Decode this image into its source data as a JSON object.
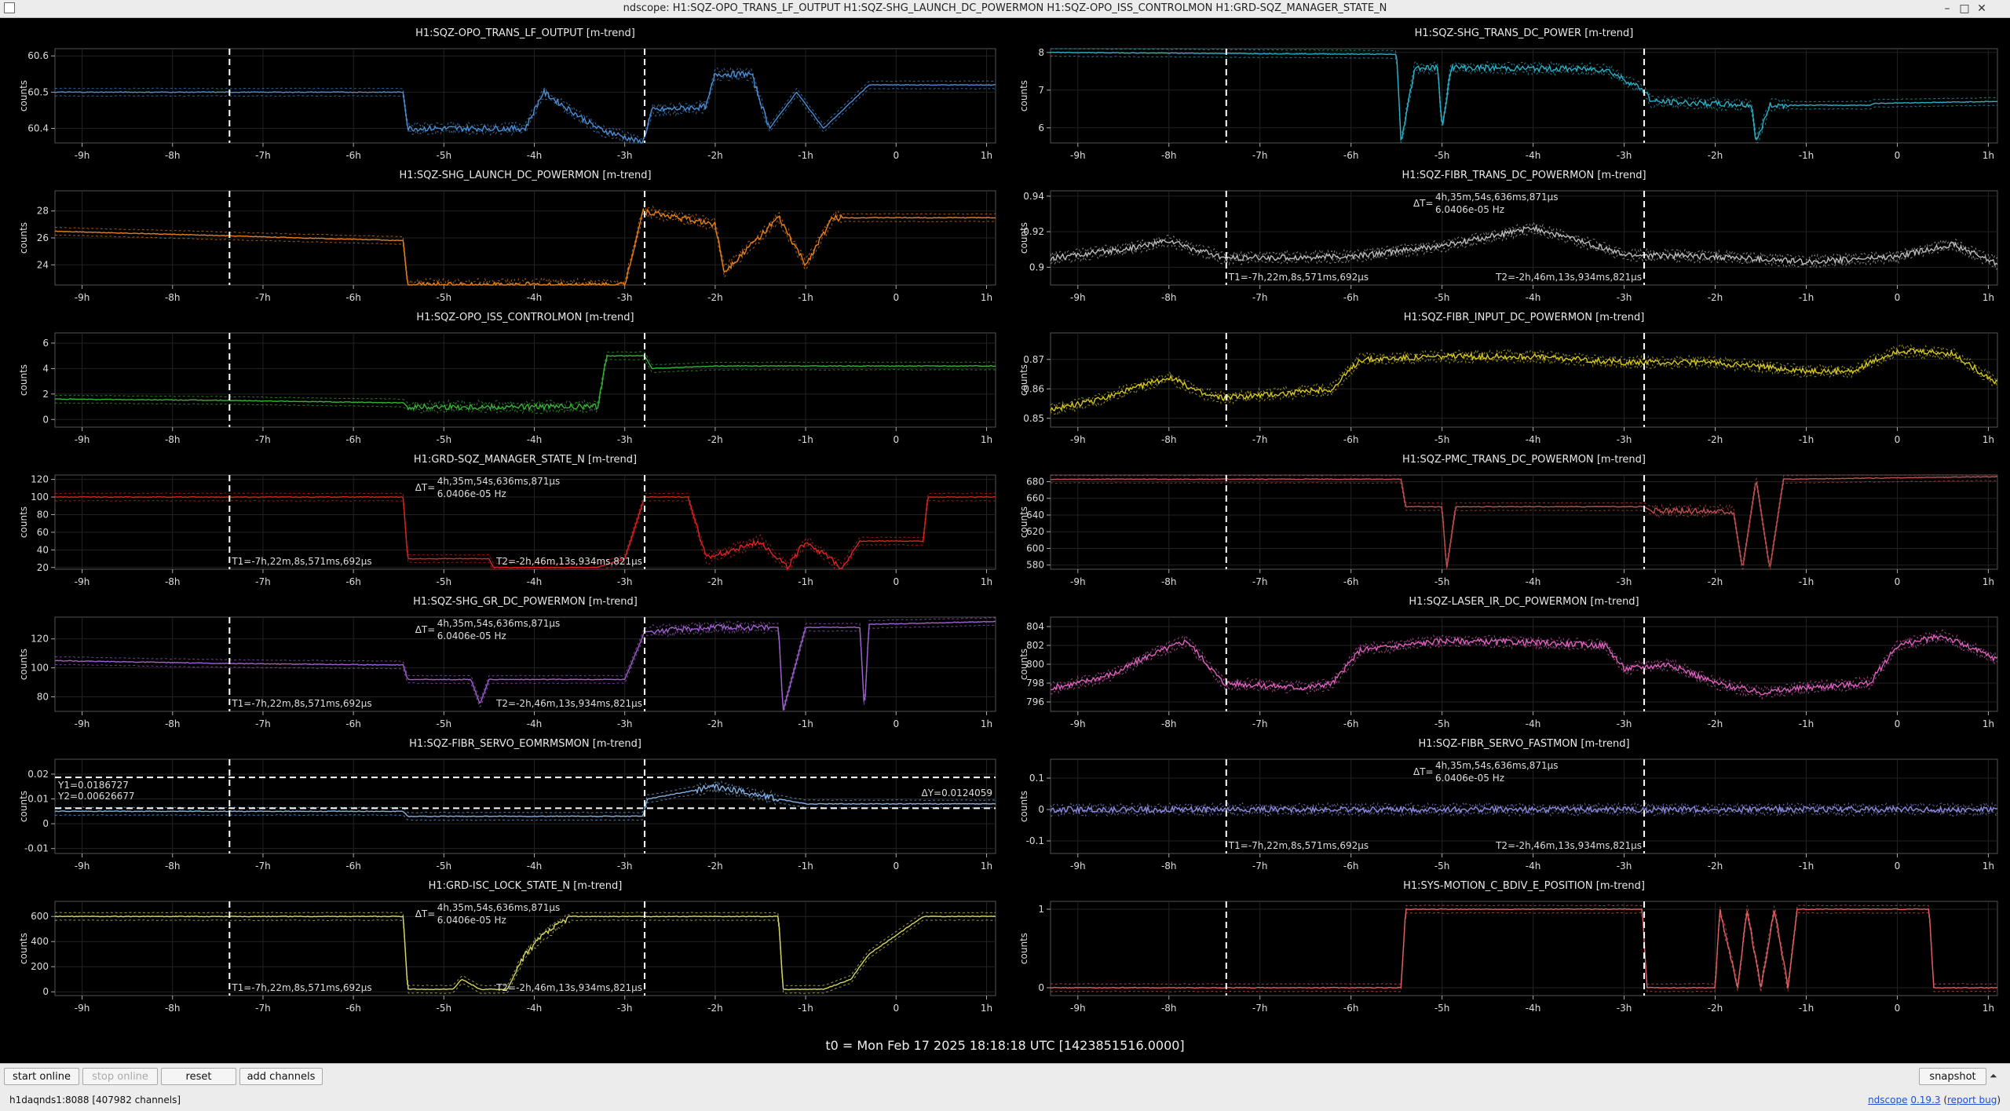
{
  "window": {
    "title": "ndscope: H1:SQZ-OPO_TRANS_LF_OUTPUT H1:SQZ-SHG_LAUNCH_DC_POWERMON H1:SQZ-OPO_ISS_CONTROLMON H1:GRD-SQZ_MANAGER_STATE_N",
    "minimize": "–",
    "maximize": "□",
    "close": "✕",
    "app_icon": "window-icon"
  },
  "x_ticks": [
    "-9h",
    "-8h",
    "-7h",
    "-6h",
    "-5h",
    "-4h",
    "-3h",
    "-2h",
    "-1h",
    "0",
    "1h"
  ],
  "x_tick_values": [
    -9,
    -8,
    -7,
    -6,
    -5,
    -4,
    -3,
    -2,
    -1,
    0,
    1
  ],
  "cursor_t1_h": -7.37,
  "cursor_t2_h": -2.78,
  "ylabel": "counts",
  "cursor_labels": {
    "delta_t": "ΔT=",
    "delta_t_value": "4h,35m,54s,636ms,871μs",
    "freq": "6.0406e-05 Hz",
    "t1": "T1=-7h,22m,8s,571ms,692μs",
    "t2": "T2=-2h,46m,13s,934ms,821μs"
  },
  "plots": [
    {
      "title": "H1:SQZ-OPO_TRANS_LF_OUTPUT [m-trend]",
      "color": "#4a8fd6",
      "yticks": [
        "60.6",
        "60.5",
        "60.4"
      ],
      "ytick_values": [
        60.6,
        60.5,
        60.4
      ],
      "ylim": [
        60.36,
        60.62
      ],
      "xrange": [
        -9.3,
        1.1
      ],
      "trace": [
        [
          -9.3,
          60.5
        ],
        [
          -7.4,
          60.5
        ],
        [
          -5.45,
          60.5
        ],
        [
          -5.4,
          60.4
        ],
        [
          -4.1,
          60.4
        ],
        [
          -3.9,
          60.5
        ],
        [
          -3.3,
          60.4
        ],
        [
          -2.8,
          60.36
        ],
        [
          -2.7,
          60.45
        ],
        [
          -2.1,
          60.46
        ],
        [
          -2.0,
          60.55
        ],
        [
          -1.6,
          60.55
        ],
        [
          -1.4,
          60.4
        ],
        [
          -1.1,
          60.5
        ],
        [
          -0.8,
          60.4
        ],
        [
          -0.3,
          60.52
        ],
        [
          1.1,
          60.52
        ]
      ],
      "noisy_from": -5.4,
      "noisy_to": -1.4,
      "cursors": false
    },
    {
      "title": "H1:SQZ-SHG_TRANS_DC_POWER [m-trend]",
      "color": "#2ab0c8",
      "yticks": [
        "8",
        "7",
        "6"
      ],
      "ytick_values": [
        8,
        7,
        6
      ],
      "ylim": [
        5.6,
        8.1
      ],
      "xrange": [
        -9.3,
        1.1
      ],
      "trace": [
        [
          -9.3,
          8.0
        ],
        [
          -5.5,
          7.95
        ],
        [
          -5.45,
          5.6
        ],
        [
          -5.3,
          7.6
        ],
        [
          -5.05,
          7.6
        ],
        [
          -5.0,
          6.0
        ],
        [
          -4.9,
          7.6
        ],
        [
          -3.2,
          7.55
        ],
        [
          -2.78,
          7.0
        ],
        [
          -2.7,
          6.7
        ],
        [
          -1.6,
          6.6
        ],
        [
          -1.55,
          5.6
        ],
        [
          -1.4,
          6.6
        ],
        [
          -0.3,
          6.6
        ],
        [
          -0.25,
          6.65
        ],
        [
          1.1,
          6.7
        ]
      ],
      "noisy_from": -5.5,
      "noisy_to": -1.2,
      "cursors": false
    },
    {
      "title": "H1:SQZ-SHG_LAUNCH_DC_POWERMON [m-trend]",
      "color": "#e8801a",
      "yticks": [
        "28",
        "26",
        "24"
      ],
      "ytick_values": [
        28,
        26,
        24
      ],
      "ylim": [
        22.5,
        29.5
      ],
      "xrange": [
        -9.3,
        1.1
      ],
      "trace": [
        [
          -9.3,
          26.5
        ],
        [
          -5.45,
          25.8
        ],
        [
          -5.4,
          22.5
        ],
        [
          -3.0,
          22.5
        ],
        [
          -2.8,
          28.0
        ],
        [
          -2.0,
          27.0
        ],
        [
          -1.9,
          23.5
        ],
        [
          -1.3,
          27.5
        ],
        [
          -1.0,
          24.0
        ],
        [
          -0.7,
          27.5
        ],
        [
          1.1,
          27.5
        ]
      ],
      "noisy_from": -5.4,
      "noisy_to": -0.6,
      "cursors": false
    },
    {
      "title": "H1:SQZ-FIBR_TRANS_DC_POWERMON [m-trend]",
      "color": "#bbbbbb",
      "yticks": [
        "0.94",
        "0.92",
        "0.9"
      ],
      "ytick_values": [
        0.94,
        0.92,
        0.9
      ],
      "ylim": [
        0.89,
        0.943
      ],
      "xrange": [
        -9.3,
        1.1
      ],
      "trace": [
        [
          -9.3,
          0.905
        ],
        [
          -8.5,
          0.91
        ],
        [
          -8.0,
          0.915
        ],
        [
          -7.4,
          0.905
        ],
        [
          -6.0,
          0.906
        ],
        [
          -5.0,
          0.912
        ],
        [
          -4.0,
          0.922
        ],
        [
          -3.5,
          0.915
        ],
        [
          -3.0,
          0.907
        ],
        [
          -2.0,
          0.906
        ],
        [
          -1.0,
          0.903
        ],
        [
          0.0,
          0.906
        ],
        [
          0.6,
          0.913
        ],
        [
          1.1,
          0.902
        ]
      ],
      "noisy_from": -9.3,
      "noisy_to": 1.1,
      "cursors": true
    },
    {
      "title": "H1:SQZ-OPO_ISS_CONTROLMON [m-trend]",
      "color": "#36b336",
      "yticks": [
        "6",
        "4",
        "2",
        "0"
      ],
      "ytick_values": [
        6,
        4,
        2,
        0
      ],
      "ylim": [
        -0.6,
        6.8
      ],
      "xrange": [
        -9.3,
        1.1
      ],
      "trace": [
        [
          -9.3,
          1.6
        ],
        [
          -7.4,
          1.5
        ],
        [
          -5.45,
          1.3
        ],
        [
          -5.4,
          1.0
        ],
        [
          -3.3,
          1.0
        ],
        [
          -3.2,
          5.0
        ],
        [
          -2.78,
          5.0
        ],
        [
          -2.7,
          4.0
        ],
        [
          -2.0,
          4.2
        ],
        [
          -1.0,
          4.2
        ],
        [
          1.1,
          4.2
        ]
      ],
      "noisy_from": -5.4,
      "noisy_to": -3.2,
      "cursors": false
    },
    {
      "title": "H1:SQZ-FIBR_INPUT_DC_POWERMON [m-trend]",
      "color": "#d6c820",
      "yticks": [
        "0.87",
        "0.86",
        "0.85"
      ],
      "ytick_values": [
        0.87,
        0.86,
        0.85
      ],
      "ylim": [
        0.847,
        0.879
      ],
      "xrange": [
        -9.3,
        1.1
      ],
      "trace": [
        [
          -9.3,
          0.853
        ],
        [
          -8.8,
          0.856
        ],
        [
          -8.0,
          0.864
        ],
        [
          -7.6,
          0.858
        ],
        [
          -7.4,
          0.857
        ],
        [
          -6.5,
          0.859
        ],
        [
          -6.2,
          0.86
        ],
        [
          -5.9,
          0.87
        ],
        [
          -5.0,
          0.871
        ],
        [
          -4.0,
          0.871
        ],
        [
          -3.0,
          0.869
        ],
        [
          -2.0,
          0.869
        ],
        [
          -1.0,
          0.866
        ],
        [
          -0.5,
          0.866
        ],
        [
          0.0,
          0.873
        ],
        [
          0.6,
          0.872
        ],
        [
          1.1,
          0.862
        ]
      ],
      "noisy_from": -9.3,
      "noisy_to": 1.1,
      "cursors": false
    },
    {
      "title": "H1:GRD-SQZ_MANAGER_STATE_N [m-trend]",
      "color": "#d22",
      "yticks": [
        "120",
        "100",
        "80",
        "60",
        "40",
        "20"
      ],
      "ytick_values": [
        120,
        100,
        80,
        60,
        40,
        20
      ],
      "ylim": [
        18,
        125
      ],
      "xrange": [
        -9.3,
        1.1
      ],
      "trace": [
        [
          -9.3,
          100
        ],
        [
          -5.45,
          100
        ],
        [
          -5.4,
          30
        ],
        [
          -4.5,
          30
        ],
        [
          -4.45,
          20
        ],
        [
          -3.3,
          20
        ],
        [
          -3.0,
          30
        ],
        [
          -2.78,
          100
        ],
        [
          -2.3,
          100
        ],
        [
          -2.1,
          30
        ],
        [
          -1.5,
          50
        ],
        [
          -1.2,
          20
        ],
        [
          -1.0,
          50
        ],
        [
          -0.6,
          20
        ],
        [
          -0.4,
          50
        ],
        [
          0.3,
          50
        ],
        [
          0.35,
          100
        ],
        [
          1.1,
          100
        ]
      ],
      "noisy_from": -2.2,
      "noisy_to": -0.5,
      "cursors": true
    },
    {
      "title": "H1:SQZ-PMC_TRANS_DC_POWERMON [m-trend]",
      "color": "#c25050",
      "yticks": [
        "680",
        "660",
        "640",
        "620",
        "600",
        "580"
      ],
      "ytick_values": [
        680,
        660,
        640,
        620,
        600,
        580
      ],
      "ylim": [
        575,
        688
      ],
      "xrange": [
        -9.3,
        1.1
      ],
      "trace": [
        [
          -9.3,
          683
        ],
        [
          -5.45,
          683
        ],
        [
          -5.4,
          650
        ],
        [
          -5.0,
          650
        ],
        [
          -4.95,
          575
        ],
        [
          -4.85,
          650
        ],
        [
          -2.78,
          650
        ],
        [
          -2.7,
          645
        ],
        [
          -1.8,
          645
        ],
        [
          -1.7,
          575
        ],
        [
          -1.55,
          683
        ],
        [
          -1.4,
          575
        ],
        [
          -1.25,
          683
        ],
        [
          1.1,
          686
        ]
      ],
      "noisy_from": -2.7,
      "noisy_to": -1.8,
      "cursors": false
    },
    {
      "title": "H1:SQZ-SHG_GR_DC_POWERMON [m-trend]",
      "color": "#a060d0",
      "yticks": [
        "120",
        "100",
        "80"
      ],
      "ytick_values": [
        120,
        100,
        80
      ],
      "ylim": [
        70,
        135
      ],
      "xrange": [
        -9.3,
        1.1
      ],
      "trace": [
        [
          -9.3,
          105
        ],
        [
          -7.4,
          103
        ],
        [
          -5.45,
          102
        ],
        [
          -5.4,
          92
        ],
        [
          -4.7,
          92
        ],
        [
          -4.6,
          75
        ],
        [
          -4.5,
          92
        ],
        [
          -3.0,
          92
        ],
        [
          -2.78,
          125
        ],
        [
          -2.0,
          128
        ],
        [
          -1.3,
          128
        ],
        [
          -1.25,
          70
        ],
        [
          -1.0,
          128
        ],
        [
          -0.4,
          128
        ],
        [
          -0.35,
          70
        ],
        [
          -0.3,
          130
        ],
        [
          1.1,
          132
        ]
      ],
      "noisy_from": -2.7,
      "noisy_to": -1.4,
      "cursors": true
    },
    {
      "title": "H1:SQZ-LASER_IR_DC_POWERMON [m-trend]",
      "color": "#e060c0",
      "yticks": [
        "804",
        "802",
        "800",
        "798",
        "796"
      ],
      "ytick_values": [
        804,
        802,
        800,
        798,
        796
      ],
      "ylim": [
        795,
        805
      ],
      "xrange": [
        -9.3,
        1.1
      ],
      "trace": [
        [
          -9.3,
          797.5
        ],
        [
          -9.0,
          798
        ],
        [
          -8.6,
          799
        ],
        [
          -8.2,
          801
        ],
        [
          -7.8,
          802.5
        ],
        [
          -7.4,
          798
        ],
        [
          -6.5,
          797.5
        ],
        [
          -6.2,
          798
        ],
        [
          -5.9,
          801.5
        ],
        [
          -5.0,
          802.5
        ],
        [
          -4.0,
          802.3
        ],
        [
          -3.2,
          802
        ],
        [
          -3.0,
          799.5
        ],
        [
          -2.5,
          800
        ],
        [
          -2.0,
          798
        ],
        [
          -1.5,
          797
        ],
        [
          -1.0,
          797.5
        ],
        [
          -0.3,
          798
        ],
        [
          0.0,
          802
        ],
        [
          0.5,
          803
        ],
        [
          1.1,
          800.5
        ]
      ],
      "noisy_from": -9.3,
      "noisy_to": 1.1,
      "cursors": false
    },
    {
      "title": "H1:SQZ-FIBR_SERVO_EOMRMSMON [m-trend]",
      "color": "#7fb2e8",
      "yticks": [
        "0.02",
        "0.01",
        "0",
        "-0.01"
      ],
      "ytick_values": [
        0.02,
        0.01,
        0,
        -0.01
      ],
      "ylim": [
        -0.012,
        0.026
      ],
      "xrange": [
        -9.3,
        1.1
      ],
      "trace": [
        [
          -9.3,
          0.005
        ],
        [
          -5.45,
          0.005
        ],
        [
          -5.4,
          0.003
        ],
        [
          -2.8,
          0.003
        ],
        [
          -2.75,
          0.01
        ],
        [
          -2.0,
          0.015
        ],
        [
          -1.3,
          0.01
        ],
        [
          -1.0,
          0.008
        ],
        [
          1.1,
          0.008
        ]
      ],
      "noisy_from": -2.2,
      "noisy_to": -1.3,
      "cursors": false,
      "hcursors": {
        "y1": 0.0186727,
        "y2": 0.00626677,
        "y1_label": "Y1=0.0186727",
        "y2_label": "Y2=0.00626677",
        "dy_label": "ΔY=0.0124059"
      }
    },
    {
      "title": "H1:SQZ-FIBR_SERVO_FASTMON [m-trend]",
      "color": "#8a8ae0",
      "yticks": [
        "0.1",
        "0",
        "-0.1"
      ],
      "ytick_values": [
        0.1,
        0,
        -0.1
      ],
      "ylim": [
        -0.14,
        0.16
      ],
      "xrange": [
        -9.3,
        1.1
      ],
      "trace": [
        [
          -9.3,
          0.0
        ],
        [
          1.1,
          0.0
        ]
      ],
      "noisy_from": -9.3,
      "noisy_to": 1.1,
      "cursors": true
    },
    {
      "title": "H1:GRD-ISC_LOCK_STATE_N [m-trend]",
      "color": "#d8d860",
      "yticks": [
        "600",
        "400",
        "200",
        "0"
      ],
      "ytick_values": [
        600,
        400,
        200,
        0
      ],
      "ylim": [
        -30,
        720
      ],
      "xrange": [
        -9.3,
        1.1
      ],
      "trace": [
        [
          -9.3,
          600
        ],
        [
          -5.45,
          600
        ],
        [
          -5.4,
          20
        ],
        [
          -4.9,
          20
        ],
        [
          -4.8,
          100
        ],
        [
          -4.6,
          20
        ],
        [
          -4.3,
          20
        ],
        [
          -4.1,
          300
        ],
        [
          -3.9,
          450
        ],
        [
          -3.6,
          600
        ],
        [
          -1.3,
          600
        ],
        [
          -1.25,
          20
        ],
        [
          -0.8,
          20
        ],
        [
          -0.5,
          100
        ],
        [
          -0.3,
          300
        ],
        [
          0.0,
          450
        ],
        [
          0.3,
          600
        ],
        [
          1.1,
          600
        ]
      ],
      "noisy_from": -4.2,
      "noisy_to": -3.6,
      "cursors": true
    },
    {
      "title": "H1:SYS-MOTION_C_BDIV_E_POSITION [m-trend]",
      "color": "#e06060",
      "yticks": [
        "1",
        "0"
      ],
      "ytick_values": [
        1,
        0
      ],
      "ylim": [
        -0.1,
        1.1
      ],
      "xrange": [
        -9.3,
        1.1
      ],
      "trace": [
        [
          -9.3,
          0
        ],
        [
          -5.45,
          0
        ],
        [
          -5.4,
          1
        ],
        [
          -2.8,
          1
        ],
        [
          -2.75,
          0
        ],
        [
          -2.0,
          0
        ],
        [
          -1.95,
          1
        ],
        [
          -1.75,
          0
        ],
        [
          -1.65,
          1
        ],
        [
          -1.5,
          0
        ],
        [
          -1.35,
          1
        ],
        [
          -1.2,
          0
        ],
        [
          -1.1,
          1
        ],
        [
          0.35,
          1
        ],
        [
          0.4,
          0
        ],
        [
          1.1,
          0
        ]
      ],
      "noisy_from": -2.0,
      "noisy_to": -1.2,
      "cursors": false
    }
  ],
  "t0": "t0 = Mon Feb 17 2025 18:18:18 UTC [1423851516.0000]",
  "buttons": {
    "start_online": "start online",
    "stop_online": "stop online",
    "reset": "reset",
    "add_channels": "add channels",
    "snapshot": "snapshot"
  },
  "status": {
    "server": "h1daqnds1:8088  [407982 channels]",
    "app": "ndscope",
    "version": "0.19.3",
    "report": "report bug"
  }
}
